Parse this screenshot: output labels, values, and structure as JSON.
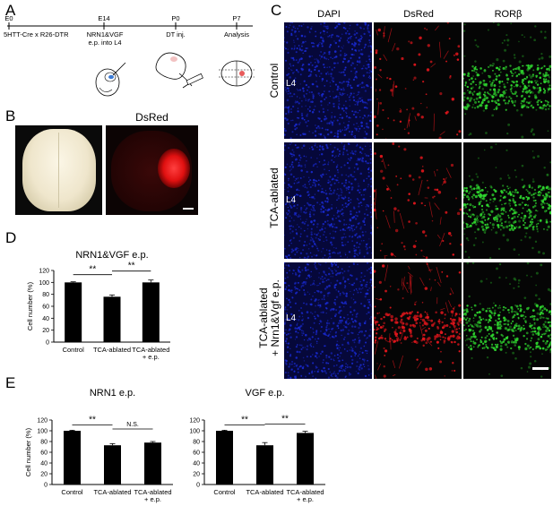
{
  "panels": {
    "A": {
      "label": "A",
      "timeline": [
        {
          "stage": "E0",
          "desc": "5HTT-Cre x R26-DTR"
        },
        {
          "stage": "E14",
          "desc": "NRN1&VGF e.p. into L4"
        },
        {
          "stage": "P0",
          "desc": "DT inj."
        },
        {
          "stage": "P7",
          "desc": "Analysis"
        }
      ]
    },
    "B": {
      "label": "B",
      "dsred_title": "DsRed"
    },
    "C": {
      "label": "C",
      "columns": [
        "DAPI",
        "DsRed",
        "RORβ"
      ],
      "rows": [
        "Control",
        "TCA-ablated",
        "TCA-ablated\n+ Nrn1&Vgf e.p."
      ],
      "layer_label": "L4"
    },
    "D": {
      "label": "D"
    },
    "E": {
      "label": "E"
    }
  },
  "colors": {
    "dapi": "#1a2bd6",
    "dsred": "#e0161c",
    "ror": "#2fd62f",
    "bar": "#000000"
  },
  "chart_data": [
    {
      "type": "bar",
      "title": "NRN1&VGF e.p.",
      "ylabel": "Cell number (%)",
      "categories": [
        "Control",
        "TCA-ablated",
        "TCA-ablated\n+ e.p."
      ],
      "values": [
        100,
        76,
        100
      ],
      "errors": [
        1,
        3,
        4
      ],
      "ylim": [
        0,
        120
      ],
      "yticks": [
        0,
        20,
        40,
        60,
        80,
        100,
        120
      ],
      "significance": [
        {
          "from": 0,
          "to": 1,
          "label": "**"
        },
        {
          "from": 1,
          "to": 2,
          "label": "**"
        }
      ]
    },
    {
      "type": "bar",
      "title": "NRN1 e.p.",
      "ylabel": "Cell number (%)",
      "categories": [
        "Control",
        "TCA-ablated",
        "TCA-ablated\n+ e.p."
      ],
      "values": [
        100,
        73,
        78
      ],
      "errors": [
        1,
        3,
        2
      ],
      "ylim": [
        0,
        120
      ],
      "yticks": [
        0,
        20,
        40,
        60,
        80,
        100,
        120
      ],
      "significance": [
        {
          "from": 0,
          "to": 1,
          "label": "**"
        },
        {
          "from": 1,
          "to": 2,
          "label": "N.S."
        }
      ]
    },
    {
      "type": "bar",
      "title": "VGF e.p.",
      "ylabel": "",
      "categories": [
        "Control",
        "TCA-ablated",
        "TCA-ablated\n+ e.p."
      ],
      "values": [
        100,
        73,
        96
      ],
      "errors": [
        1,
        5,
        3
      ],
      "ylim": [
        0,
        120
      ],
      "yticks": [
        0,
        20,
        40,
        60,
        80,
        100,
        120
      ],
      "significance": [
        {
          "from": 0,
          "to": 1,
          "label": "**"
        },
        {
          "from": 1,
          "to": 2,
          "label": "**"
        }
      ]
    }
  ]
}
